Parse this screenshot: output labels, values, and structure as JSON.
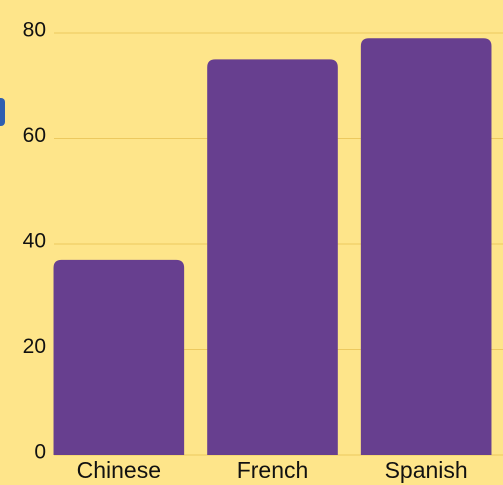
{
  "chart_data": {
    "type": "bar",
    "categories": [
      "Chinese",
      "French",
      "Spanish"
    ],
    "values": [
      37,
      75,
      79
    ],
    "color": "#673f8f",
    "ylim": [
      0,
      80
    ],
    "yticks": [
      0,
      20,
      40,
      60,
      80
    ],
    "grid": true
  }
}
